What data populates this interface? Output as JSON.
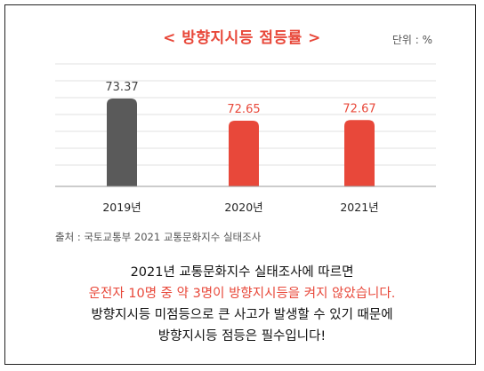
{
  "title": "< 방향지시등 점등률 >",
  "unit_label": "단위 : %",
  "source_text": "출처 : 국토교통부 2021 교통문화지수 실태조사",
  "summary": {
    "line1": "2021년 교통문화지수 실태조사에 따르면",
    "line2": "운전자 10명 중 약 3명이 방향지시등을 켜지 않았습니다.",
    "line3": "방향지시등 미점등으로 큰 사고가 발생할 수 있기 때문에",
    "line4": "방향지시등 점등은 필수입니다!"
  },
  "colors": {
    "accent": "#e8483a",
    "bar_2019": "#5a5a5a",
    "bar_highlight": "#e8483a",
    "gridline": "#e2e2e2"
  },
  "chart_data": {
    "type": "bar",
    "title": "< 방향지시등 점등률 >",
    "categories": [
      "2019년",
      "2020년",
      "2021년"
    ],
    "values": [
      73.37,
      72.65,
      72.67
    ],
    "value_labels": [
      "73.37",
      "72.65",
      "72.67"
    ],
    "ylabel": "",
    "xlabel": "",
    "grid": true,
    "legend": "none"
  }
}
